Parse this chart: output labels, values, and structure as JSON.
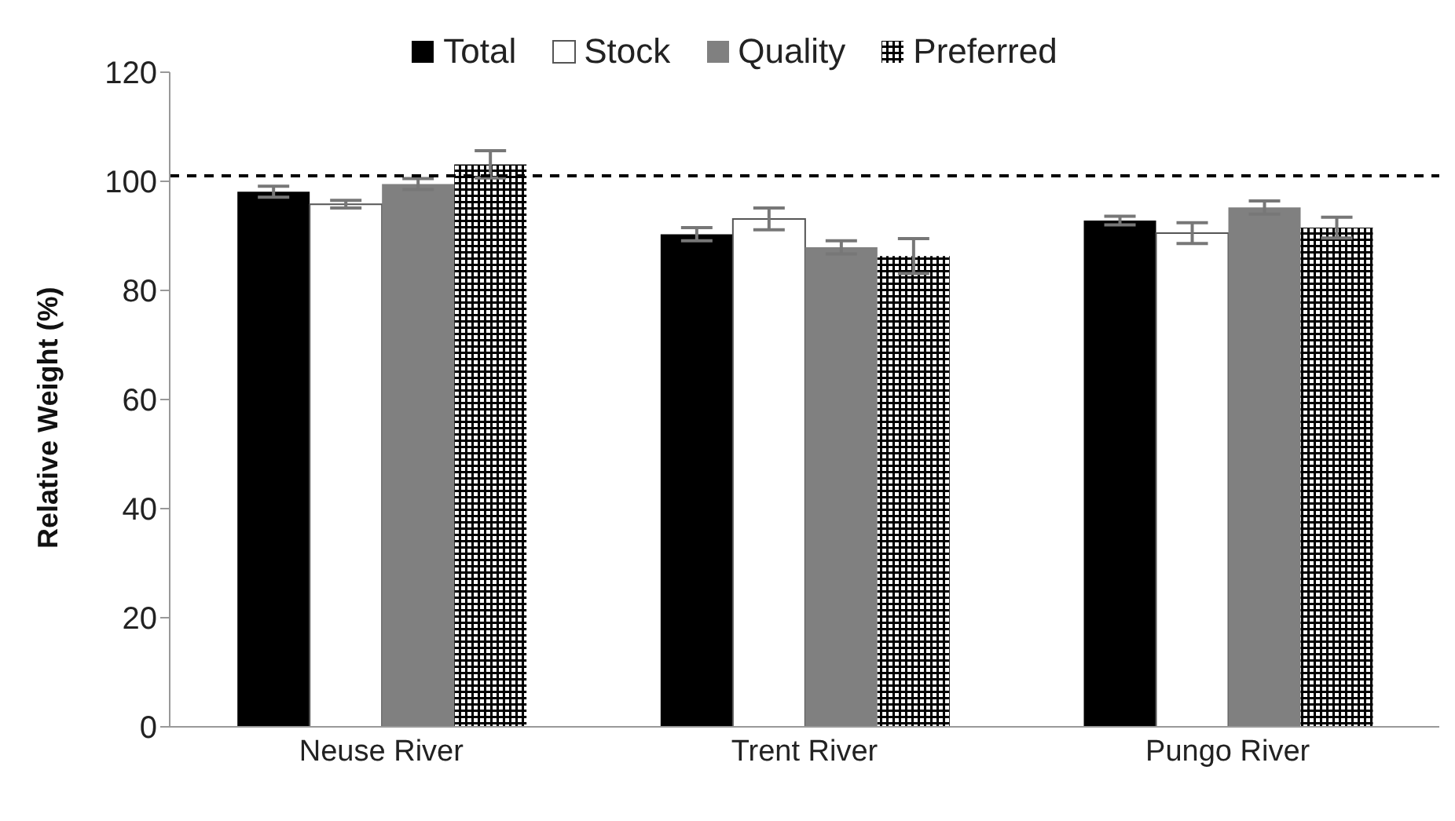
{
  "chart_data": {
    "type": "bar",
    "ylabel": "Relative Weight (%)",
    "categories": [
      "Neuse River",
      "Trent River",
      "Pungo River"
    ],
    "series": [
      {
        "name": "Total",
        "color": "#000000",
        "values": [
          98.1,
          90.3,
          92.8
        ],
        "errors": [
          1,
          1.2,
          0.8
        ]
      },
      {
        "name": "Stock",
        "color": "#ffffff",
        "values": [
          95.8,
          93.1,
          90.5
        ],
        "errors": [
          0.7,
          2,
          1.9
        ]
      },
      {
        "name": "Quality",
        "color": "#808080",
        "values": [
          99.5,
          87.9,
          95.2
        ],
        "errors": [
          1,
          1.2,
          1.2
        ]
      },
      {
        "name": "Preferred",
        "color": "#000000",
        "values": [
          103.1,
          86.3,
          91.5
        ],
        "errors": [
          2.5,
          3.2,
          1.9
        ]
      }
    ],
    "ylim": [
      0,
      120
    ],
    "yticks": [
      0,
      20,
      40,
      60,
      80,
      100,
      120
    ],
    "grid": false,
    "legend": "top",
    "ref_lines": [
      {
        "axis": "y",
        "value": 101,
        "color": "#000000",
        "line_style": "dashed"
      }
    ]
  }
}
